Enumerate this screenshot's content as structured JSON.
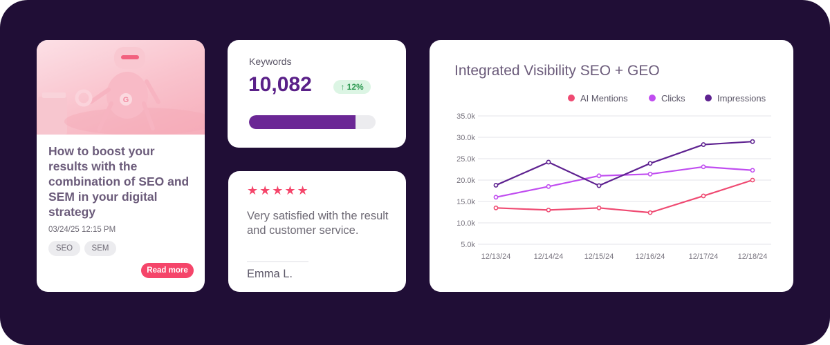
{
  "blog_card": {
    "title": "How to boost your results with the combination of SEO and SEM in your digital strategy",
    "date": "03/24/25 12:15 PM",
    "tags": [
      "SEO",
      "SEM"
    ],
    "read_more": "Read more",
    "hero_logo": "G"
  },
  "keywords_card": {
    "label": "Keywords",
    "value": "10,082",
    "change": "↑ 12%",
    "progress": 0.84
  },
  "review_card": {
    "stars": "★★★★★",
    "rating": 5,
    "text": "Very satisfied with the result and customer service.",
    "author": "Emma L."
  },
  "colors": {
    "ai_mentions": "#ef4a72",
    "clicks": "#c04df0",
    "impressions": "#5e2290",
    "accent": "#f5456a"
  },
  "chart_data": {
    "type": "line",
    "title": "Integrated Visibility SEO + GEO",
    "x": [
      "12/13/24",
      "12/14/24",
      "12/15/24",
      "12/16/24",
      "12/17/24",
      "12/18/24"
    ],
    "y_ticks": [
      "35.0k",
      "30.0k",
      "25.0k",
      "20.0k",
      "15.0k",
      "10.0k",
      "5.0k"
    ],
    "ylim": [
      5000,
      35000
    ],
    "legend_position": "top-right",
    "grid": true,
    "series": [
      {
        "name": "AI Mentions",
        "color": "#ef4a72",
        "values": [
          13500,
          13000,
          13500,
          12400,
          16300,
          20000
        ]
      },
      {
        "name": "Clicks",
        "color": "#c04df0",
        "values": [
          16000,
          18500,
          21000,
          21400,
          23100,
          22300
        ]
      },
      {
        "name": "Impressions",
        "color": "#5e2290",
        "values": [
          18800,
          24200,
          18700,
          23900,
          28300,
          29000
        ]
      }
    ]
  }
}
